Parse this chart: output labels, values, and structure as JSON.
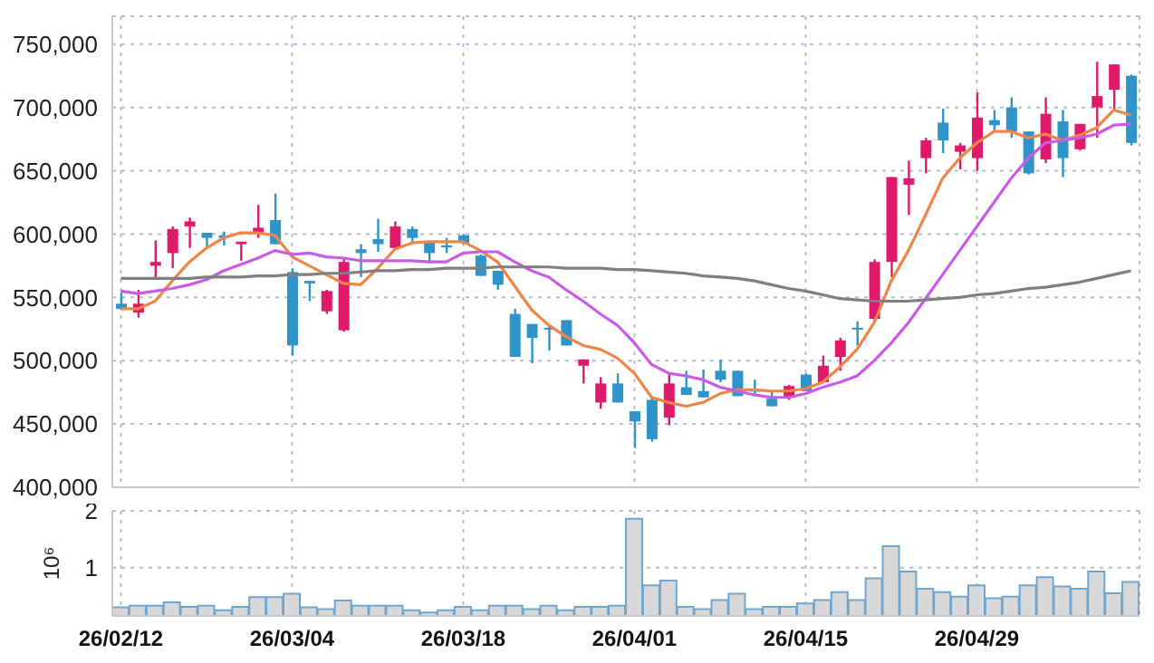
{
  "chart_data": [
    {
      "type": "candlestick",
      "categories": [
        null,
        null,
        null,
        null,
        null,
        null,
        null,
        null,
        null,
        null,
        null,
        null,
        null,
        null,
        null,
        null,
        null,
        null,
        null,
        null,
        null,
        null,
        null,
        null,
        null,
        null,
        null,
        null,
        null,
        null,
        null,
        null,
        null,
        null,
        null,
        null,
        null,
        null,
        null,
        null,
        null,
        null,
        null,
        null,
        null,
        null,
        null,
        null,
        null,
        null,
        null,
        null,
        null,
        null,
        null,
        null,
        null,
        null,
        null,
        null
      ],
      "ohlc": [
        [
          545000,
          554000,
          540000,
          541000
        ],
        [
          538000,
          556000,
          534000,
          545000
        ],
        [
          575000,
          595000,
          566000,
          578000
        ],
        [
          585000,
          606000,
          573000,
          604000
        ],
        [
          606000,
          613000,
          589000,
          610000
        ],
        [
          601000,
          601000,
          589000,
          597000
        ],
        [
          599000,
          602000,
          591000,
          597000
        ],
        [
          592000,
          594000,
          579000,
          594000
        ],
        [
          600000,
          623000,
          597000,
          605000
        ],
        [
          611000,
          632000,
          592000,
          592000
        ],
        [
          570000,
          573000,
          504000,
          512000
        ],
        [
          563000,
          563000,
          547000,
          561000
        ],
        [
          539000,
          556000,
          537000,
          555000
        ],
        [
          524000,
          581000,
          523000,
          578000
        ],
        [
          588000,
          592000,
          566000,
          585000
        ],
        [
          596000,
          612000,
          586000,
          592000
        ],
        [
          589000,
          610000,
          589000,
          606000
        ],
        [
          604000,
          606000,
          592000,
          597000
        ],
        [
          594000,
          594000,
          577000,
          585000
        ],
        [
          591000,
          597000,
          585000,
          590000
        ],
        [
          599000,
          600000,
          592000,
          593000
        ],
        [
          583000,
          584000,
          567000,
          567000
        ],
        [
          571000,
          571000,
          556000,
          560000
        ],
        [
          537000,
          541000,
          503000,
          503000
        ],
        [
          529000,
          529000,
          498000,
          518000
        ],
        [
          526000,
          528000,
          508000,
          525000
        ],
        [
          532000,
          532000,
          512000,
          512000
        ],
        [
          496000,
          501000,
          482000,
          501000
        ],
        [
          467000,
          487000,
          462000,
          482000
        ],
        [
          482000,
          490000,
          467000,
          467000
        ],
        [
          460000,
          460000,
          431000,
          452000
        ],
        [
          469000,
          471000,
          436000,
          438000
        ],
        [
          455000,
          490000,
          449000,
          482000
        ],
        [
          479000,
          492000,
          473000,
          473000
        ],
        [
          476000,
          493000,
          471000,
          471000
        ],
        [
          492000,
          501000,
          483000,
          485000
        ],
        [
          492000,
          492000,
          472000,
          472000
        ],
        [
          477000,
          485000,
          474000,
          476000
        ],
        [
          470000,
          476000,
          464000,
          464000
        ],
        [
          471000,
          481000,
          469000,
          480000
        ],
        [
          489000,
          490000,
          476000,
          476000
        ],
        [
          483000,
          504000,
          483000,
          496000
        ],
        [
          503000,
          518000,
          492000,
          516000
        ],
        [
          526000,
          531000,
          512000,
          525000
        ],
        [
          533000,
          580000,
          530000,
          578000
        ],
        [
          578000,
          645000,
          566000,
          645000
        ],
        [
          639000,
          658000,
          615000,
          644000
        ],
        [
          660000,
          676000,
          648000,
          674000
        ],
        [
          688000,
          699000,
          664000,
          674000
        ],
        [
          665000,
          672000,
          651000,
          670000
        ],
        [
          660000,
          712000,
          650000,
          692000
        ],
        [
          690000,
          698000,
          681000,
          686000
        ],
        [
          700000,
          708000,
          676000,
          681000
        ],
        [
          681000,
          681000,
          647000,
          648000
        ],
        [
          659000,
          708000,
          656000,
          695000
        ],
        [
          689000,
          698000,
          645000,
          660000
        ],
        [
          667000,
          687000,
          666000,
          687000
        ],
        [
          700000,
          736000,
          676000,
          709000
        ],
        [
          714000,
          734000,
          698000,
          734000
        ],
        [
          725000,
          726000,
          670000,
          672000
        ]
      ],
      "colors": [
        "#2f95c8",
        "#e01a6a",
        "#e01a6a",
        "#e01a6a",
        "#e01a6a",
        "#2f95c8",
        "#2f95c8",
        "#e01a6a",
        "#e01a6a",
        "#2f95c8",
        "#2f95c8",
        "#2f95c8",
        "#e01a6a",
        "#e01a6a",
        "#2f95c8",
        "#2f95c8",
        "#e01a6a",
        "#2f95c8",
        "#2f95c8",
        "#2f95c8",
        "#2f95c8",
        "#2f95c8",
        "#2f95c8",
        "#2f95c8",
        "#2f95c8",
        "#2f95c8",
        "#2f95c8",
        "#e01a6a",
        "#e01a6a",
        "#2f95c8",
        "#2f95c8",
        "#2f95c8",
        "#e01a6a",
        "#2f95c8",
        "#2f95c8",
        "#2f95c8",
        "#2f95c8",
        "#2f95c8",
        "#2f95c8",
        "#e01a6a",
        "#2f95c8",
        "#e01a6a",
        "#e01a6a",
        "#2f95c8",
        "#e01a6a",
        "#e01a6a",
        "#e01a6a",
        "#e01a6a",
        "#2f95c8",
        "#e01a6a",
        "#e01a6a",
        "#2f95c8",
        "#2f95c8",
        "#2f95c8",
        "#e01a6a",
        "#2f95c8",
        "#e01a6a",
        "#e01a6a",
        "#e01a6a",
        "#2f95c8"
      ],
      "series": [
        {
          "type": "line",
          "color": "#f08548",
          "values": [
            541000,
            541000,
            547000,
            563000,
            578000,
            589000,
            597000,
            601000,
            601000,
            599000,
            582000,
            575000,
            568000,
            561000,
            560000,
            573000,
            588000,
            593000,
            594000,
            594000,
            594000,
            587000,
            578000,
            559000,
            540000,
            528000,
            519000,
            512000,
            509000,
            502000,
            490000,
            471000,
            467000,
            464000,
            467000,
            474000,
            477000,
            477000,
            476000,
            476000,
            478000,
            483000,
            495000,
            509000,
            530000,
            563000,
            587000,
            615000,
            644000,
            660000,
            672000,
            681000,
            681000,
            676000,
            679000,
            674000,
            678000,
            684000,
            698000,
            694000
          ]
        },
        {
          "type": "line",
          "color": "#c95ce6",
          "values": [
            555000,
            553000,
            555000,
            557000,
            560000,
            564000,
            571000,
            576000,
            581000,
            587000,
            584000,
            585000,
            582000,
            581000,
            579000,
            579000,
            579000,
            579000,
            578000,
            578000,
            585000,
            586000,
            586000,
            578000,
            571000,
            566000,
            556000,
            547000,
            537000,
            528000,
            514000,
            497000,
            490000,
            488000,
            485000,
            479000,
            476000,
            473000,
            471000,
            471000,
            474000,
            479000,
            483000,
            488000,
            500000,
            514000,
            530000,
            549000,
            568000,
            587000,
            606000,
            625000,
            644000,
            660000,
            672000,
            674000,
            676000,
            679000,
            686000,
            687000
          ]
        },
        {
          "type": "line",
          "color": "#7f7f7f",
          "values": [
            565000,
            565000,
            565000,
            565000,
            565000,
            566000,
            566000,
            566000,
            567000,
            567000,
            568000,
            568000,
            569000,
            569000,
            570000,
            571000,
            571000,
            572000,
            572000,
            573000,
            573000,
            573000,
            574000,
            574000,
            574000,
            574000,
            573000,
            573000,
            573000,
            572000,
            572000,
            571000,
            570000,
            569000,
            567000,
            566000,
            565000,
            563000,
            560000,
            557000,
            555000,
            552000,
            549000,
            548000,
            547000,
            547000,
            547000,
            548000,
            549000,
            550000,
            552000,
            553000,
            555000,
            557000,
            558000,
            560000,
            562000,
            565000,
            568000,
            571000
          ]
        }
      ],
      "ylim": [
        400000,
        772000
      ],
      "yticks": [
        {
          "value": 400000,
          "label": "400,000"
        },
        {
          "value": 450000,
          "label": "450,000"
        },
        {
          "value": 500000,
          "label": "500,000"
        },
        {
          "value": 550000,
          "label": "550,000"
        },
        {
          "value": 600000,
          "label": "600,000"
        },
        {
          "value": 650000,
          "label": "650,000"
        },
        {
          "value": 700000,
          "label": "700,000"
        },
        {
          "value": 750000,
          "label": "750,000"
        }
      ],
      "grid": true
    },
    {
      "type": "bar",
      "categories": [
        "26/02/12",
        null,
        null,
        null,
        null,
        null,
        null,
        null,
        null,
        null,
        "26/03/04",
        null,
        null,
        null,
        null,
        null,
        null,
        null,
        null,
        null,
        "26/03/18",
        null,
        null,
        null,
        null,
        null,
        null,
        null,
        null,
        null,
        "26/04/01",
        null,
        null,
        null,
        null,
        null,
        null,
        null,
        null,
        null,
        "26/04/15",
        null,
        null,
        null,
        null,
        null,
        null,
        null,
        null,
        null,
        "26/04/29",
        null,
        null,
        null,
        null,
        null,
        null,
        null,
        null,
        null
      ],
      "values": [
        0.3,
        0.33,
        0.33,
        0.39,
        0.31,
        0.33,
        0.25,
        0.31,
        0.48,
        0.48,
        0.54,
        0.3,
        0.27,
        0.42,
        0.33,
        0.33,
        0.33,
        0.25,
        0.21,
        0.25,
        0.31,
        0.25,
        0.33,
        0.33,
        0.27,
        0.33,
        0.25,
        0.31,
        0.31,
        0.33,
        1.86,
        0.69,
        0.77,
        0.31,
        0.27,
        0.43,
        0.54,
        0.27,
        0.31,
        0.31,
        0.37,
        0.43,
        0.57,
        0.43,
        0.81,
        1.38,
        0.93,
        0.63,
        0.57,
        0.49,
        0.69,
        0.46,
        0.49,
        0.69,
        0.83,
        0.67,
        0.63,
        0.93,
        0.55,
        0.75
      ],
      "color": "#d8d8d8",
      "ylabel": "10⁶",
      "ylim": [
        0.15,
        2
      ],
      "yticks": [
        1,
        2
      ],
      "grid": true
    }
  ]
}
